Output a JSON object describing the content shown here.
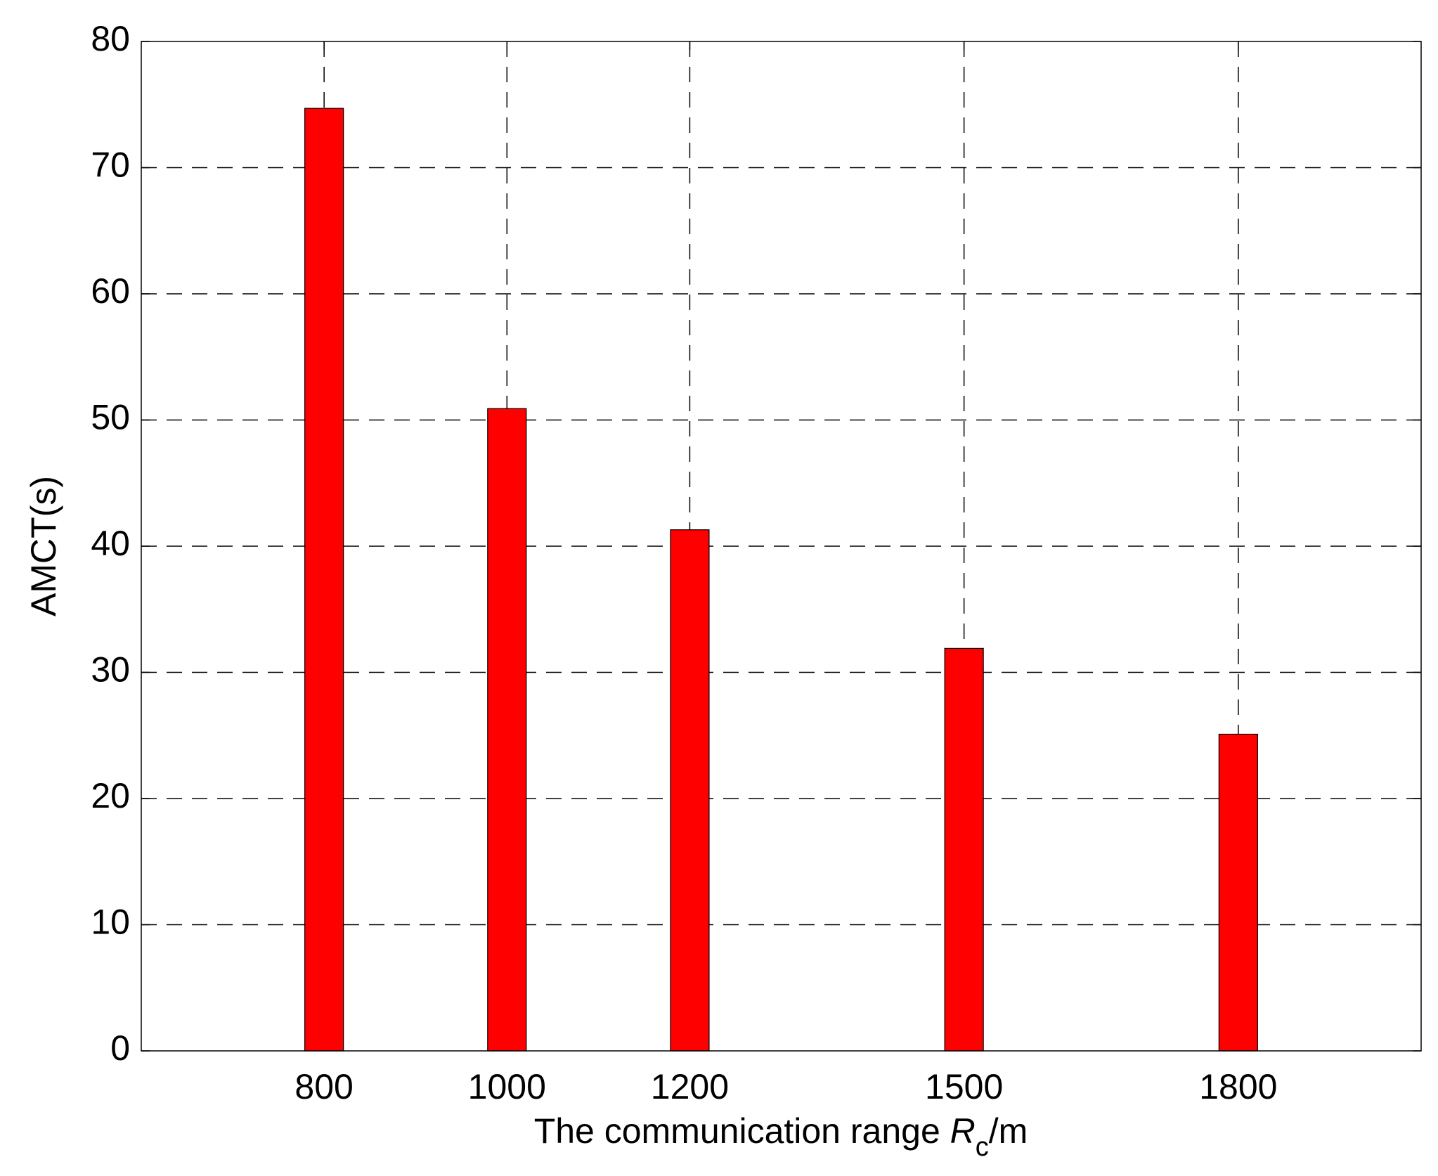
{
  "chart_data": {
    "type": "bar",
    "ylabel": "AMCT(s)",
    "xlabel": {
      "text": "The communication range ",
      "symbol": "R",
      "subscript": "c",
      "unit": "/m"
    },
    "x": [
      800,
      1000,
      1200,
      1500,
      1800
    ],
    "values": [
      74.7,
      50.9,
      41.3,
      31.9,
      25.1
    ],
    "color": "#ff0000",
    "xlim": [
      600,
      2000
    ],
    "xticks": [
      800,
      1000,
      1200,
      1500,
      1800
    ],
    "ylim": [
      0,
      80
    ],
    "yticks": [
      0,
      10,
      20,
      30,
      40,
      50,
      60,
      70,
      80
    ],
    "grid": true
  }
}
